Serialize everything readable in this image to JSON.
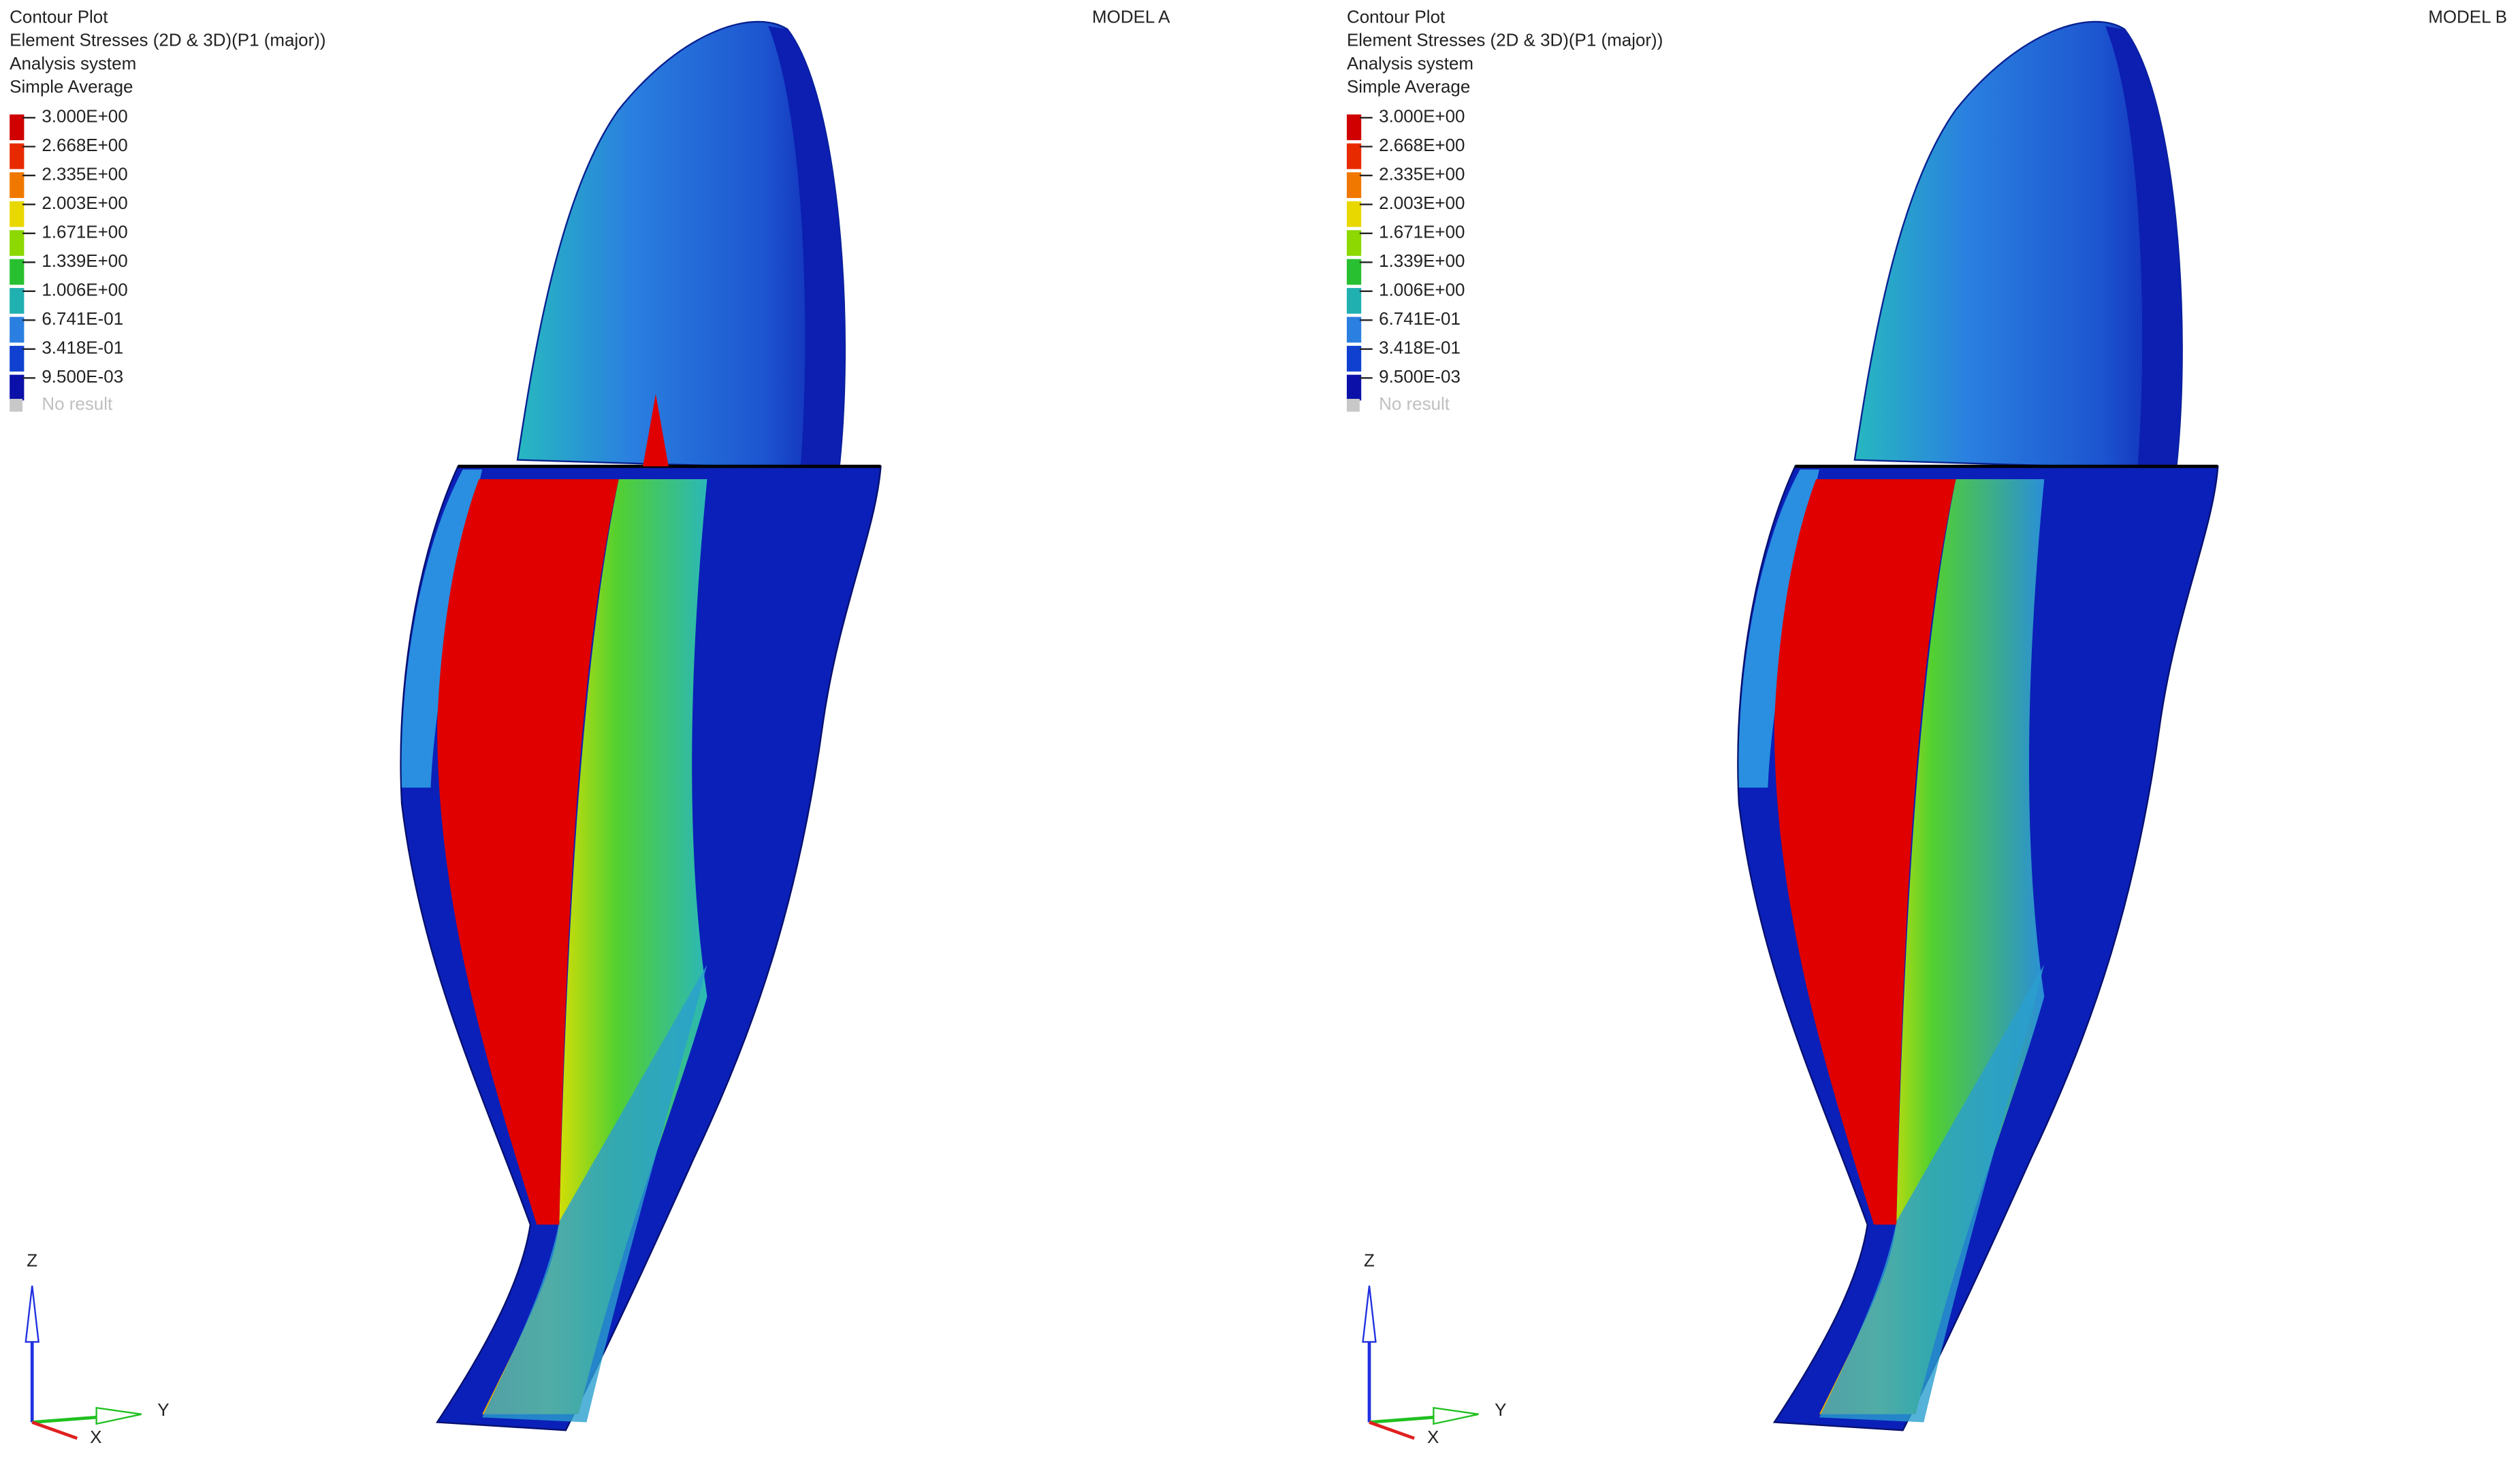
{
  "panels": [
    {
      "header": [
        "Contour Plot",
        "Element Stresses (2D & 3D)(P1 (major))",
        "Analysis system",
        "Simple Average"
      ],
      "legend": [
        "3.000E+00",
        "2.668E+00",
        "2.335E+00",
        "2.003E+00",
        "1.671E+00",
        "1.339E+00",
        "1.006E+00",
        "6.741E-01",
        "3.418E-01",
        "9.500E-03"
      ],
      "no_result": "No result",
      "model": "MODEL A",
      "axes": {
        "z": "Z",
        "y": "Y",
        "x": "X"
      }
    },
    {
      "header": [
        "Contour Plot",
        "Element Stresses (2D & 3D)(P1 (major))",
        "Analysis system",
        "Simple Average"
      ],
      "legend": [
        "3.000E+00",
        "2.668E+00",
        "2.335E+00",
        "2.003E+00",
        "1.671E+00",
        "1.339E+00",
        "1.006E+00",
        "6.741E-01",
        "3.418E-01",
        "9.500E-03"
      ],
      "no_result": "No result",
      "model": "MODEL B",
      "axes": {
        "z": "Z",
        "y": "Y",
        "x": "X"
      }
    }
  ]
}
